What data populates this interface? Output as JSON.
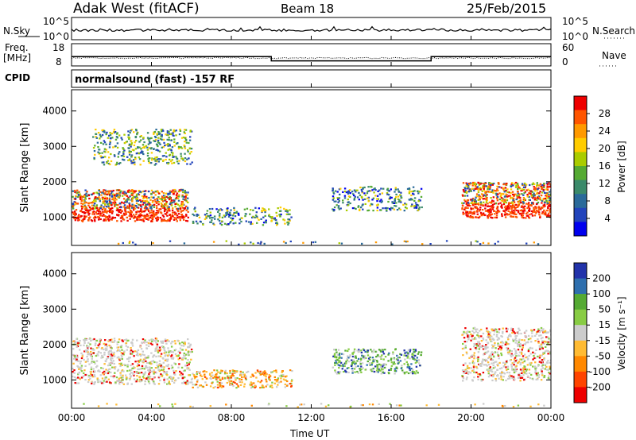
{
  "header": {
    "station": "Adak West (fitACF)",
    "beam": "Beam 18",
    "date": "25/Feb/2015"
  },
  "top_panels": {
    "nsky_label": "N.Sky",
    "nsky_ticks": [
      "10^5",
      "10^0"
    ],
    "nsearch_label": "N.Search",
    "nsearch_ticks": [
      "10^5",
      "10^0"
    ],
    "freq_label_1": "Freq.",
    "freq_label_2": "[MHz]",
    "freq_ticks": [
      "18",
      "8"
    ],
    "nave_label": "Nave",
    "nave_ticks": [
      "60",
      "0"
    ],
    "cpid_label": "CPID",
    "cpid_text": "normalsound (fast) -157 RF"
  },
  "panels": {
    "ylabel": "Slant Range [km]",
    "yticks": [
      "4000",
      "3000",
      "2000",
      "1000"
    ],
    "xlabel": "Time UT",
    "xticks": [
      "00:00",
      "04:00",
      "08:00",
      "12:00",
      "16:00",
      "20:00",
      "00:00"
    ]
  },
  "power_scale": {
    "label": "Power [dB]",
    "ticks": [
      "28",
      "24",
      "20",
      "16",
      "12",
      "8",
      "4"
    ],
    "colors": [
      "#ee0000",
      "#ff5500",
      "#ff9900",
      "#ffcc00",
      "#aacc00",
      "#55aa33",
      "#3b8a6a",
      "#2a6a9a",
      "#2244bb",
      "#0000ee"
    ]
  },
  "velocity_scale": {
    "label": "Velocity [m s⁻¹]",
    "ticks": [
      "200",
      "100",
      "50",
      "15",
      "-15",
      "-50",
      "-100",
      "-200"
    ],
    "colors": [
      "#2233aa",
      "#2e6fae",
      "#55aa33",
      "#88cc44",
      "#cccccc",
      "#ffbb33",
      "#ff8800",
      "#ff4400",
      "#ee0000"
    ]
  },
  "chart_data": {
    "type": "heatmap",
    "title": "Adak West (fitACF)  Beam 18  25/Feb/2015",
    "xlabel": "Time UT",
    "ylabel": "Slant Range [km]",
    "xlim_hours": [
      0,
      24
    ],
    "ylim_km": [
      200,
      4600
    ],
    "frequency_mhz": [
      {
        "from_hour": 0,
        "to_hour": 10,
        "value": 12
      },
      {
        "from_hour": 10,
        "to_hour": 18,
        "value": 10
      },
      {
        "from_hour": 18,
        "to_hour": 24,
        "value": 12
      }
    ],
    "power_regions": [
      {
        "t0": 0,
        "t1": 5.8,
        "r0": 900,
        "r1": 1800,
        "level": "high"
      },
      {
        "t0": 1,
        "t1": 6,
        "r0": 2500,
        "r1": 3500,
        "level": "medium"
      },
      {
        "t0": 6,
        "t1": 11,
        "r0": 800,
        "r1": 1300,
        "level": "low"
      },
      {
        "t0": 13,
        "t1": 17.5,
        "r0": 1200,
        "r1": 1900,
        "level": "low"
      },
      {
        "t0": 19.5,
        "t1": 24,
        "r0": 1000,
        "r1": 2000,
        "level": "high"
      }
    ],
    "velocity_regions": [
      {
        "t0": 0,
        "t1": 6,
        "r0": 900,
        "r1": 2200,
        "sign": "near zero"
      },
      {
        "t0": 6,
        "t1": 11,
        "r0": 800,
        "r1": 1300,
        "sign": "negative"
      },
      {
        "t0": 13,
        "t1": 17.5,
        "r0": 1200,
        "r1": 1900,
        "sign": "positive"
      },
      {
        "t0": 19.5,
        "t1": 24,
        "r0": 1000,
        "r1": 2500,
        "sign": "near zero"
      }
    ]
  }
}
